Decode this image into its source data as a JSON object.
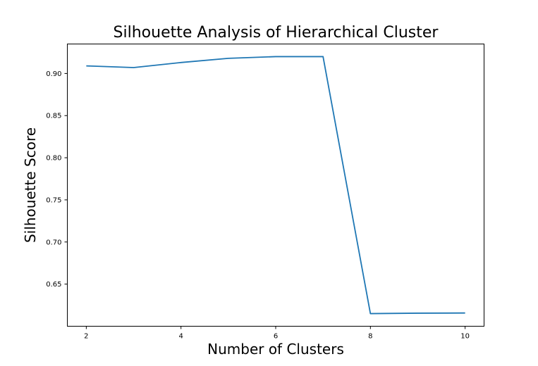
{
  "chart_data": {
    "type": "line",
    "title": "Silhouette Analysis of Hierarchical Cluster",
    "xlabel": "Number of Clusters",
    "ylabel": "Silhouette Score",
    "x": [
      2,
      3,
      4,
      5,
      6,
      7,
      8,
      9,
      10
    ],
    "series": [
      {
        "values": [
          0.909,
          0.907,
          0.913,
          0.918,
          0.92,
          0.92,
          0.615,
          0.6155,
          0.6157
        ]
      }
    ],
    "xlim": [
      1.6,
      10.4
    ],
    "ylim": [
      0.6,
      0.935
    ],
    "xticks": [
      "2",
      "4",
      "6",
      "8",
      "10"
    ],
    "yticks": [
      "0.65",
      "0.70",
      "0.75",
      "0.80",
      "0.85",
      "0.90"
    ],
    "grid": false,
    "line_color": "#1f77b4"
  }
}
